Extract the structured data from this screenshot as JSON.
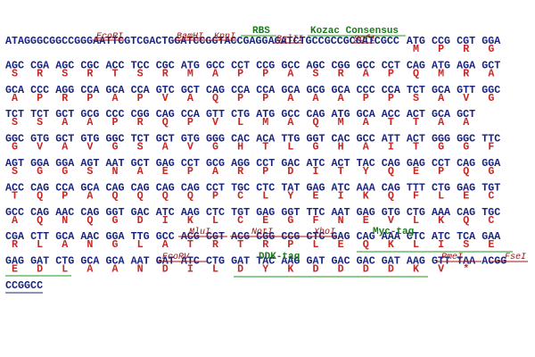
{
  "rows": [
    {
      "prefix": "ATAGGGCGGCCGGGAATTCGTCGACTGGATCCGGTACCGAGGAGATCTGCCGCCGCGATCGCC",
      "codons": [
        "ATG",
        "CCG",
        "CGT",
        "GGA"
      ],
      "aa": [
        "M",
        "P",
        "R",
        "G"
      ]
    },
    {
      "codons": [
        "AGC",
        "CGA",
        "AGC",
        "CGC",
        "ACC",
        "TCC",
        "CGC",
        "ATG",
        "GCC",
        "CCT",
        "CCG",
        "GCC",
        "AGC",
        "CGG",
        "GCC",
        "CCT",
        "CAG",
        "ATG",
        "AGA",
        "GCT"
      ],
      "aa": [
        "S",
        "R",
        "S",
        "R",
        "T",
        "S",
        "R",
        "M",
        "A",
        "P",
        "P",
        "A",
        "S",
        "R",
        "A",
        "P",
        "Q",
        "M",
        "R",
        "A"
      ]
    },
    {
      "codons": [
        "GCA",
        "CCC",
        "AGG",
        "CCA",
        "GCA",
        "CCA",
        "GTC",
        "GCT",
        "CAG",
        "CCA",
        "CCA",
        "GCA",
        "GCG",
        "GCA",
        "CCC",
        "CCA",
        "TCT",
        "GCA",
        "GTT",
        "GGC"
      ],
      "aa": [
        "A",
        "P",
        "R",
        "P",
        "A",
        "P",
        "V",
        "A",
        "Q",
        "P",
        "P",
        "A",
        "A",
        "A",
        "P",
        "P",
        "S",
        "A",
        "V",
        "G"
      ]
    },
    {
      "codons": [
        "TCT",
        "TCT",
        "GCT",
        "GCG",
        "CCC",
        "CGG",
        "CAG",
        "CCA",
        "GTT",
        "CTG",
        "ATG",
        "GCC",
        "CAG",
        "ATG",
        "GCA",
        "ACC",
        "ACT",
        "GCA",
        "GCT"
      ],
      "aa": [
        "S",
        "S",
        "A",
        "A",
        "P",
        "R",
        "Q",
        "P",
        "V",
        "L",
        "M",
        "A",
        "Q",
        "M",
        "A",
        "T",
        "T",
        "A",
        "A"
      ]
    },
    {
      "codons": [
        "GGC",
        "GTG",
        "GCT",
        "GTG",
        "GGC",
        "TCT",
        "GCT",
        "GTG",
        "GGG",
        "CAC",
        "ACA",
        "TTG",
        "GGT",
        "CAC",
        "GCC",
        "ATT",
        "ACT",
        "GGG",
        "GGC",
        "TTC"
      ],
      "aa": [
        "G",
        "V",
        "A",
        "V",
        "G",
        "S",
        "A",
        "V",
        "G",
        "H",
        "T",
        "L",
        "G",
        "H",
        "A",
        "I",
        "T",
        "G",
        "G",
        "F"
      ]
    },
    {
      "codons": [
        "AGT",
        "GGA",
        "GGA",
        "AGT",
        "AAT",
        "GCT",
        "GAG",
        "CCT",
        "GCG",
        "AGG",
        "CCT",
        "GAC",
        "ATC",
        "ACT",
        "TAC",
        "CAG",
        "GAG",
        "CCT",
        "CAG",
        "GGA"
      ],
      "aa": [
        "S",
        "G",
        "G",
        "S",
        "N",
        "A",
        "E",
        "P",
        "A",
        "R",
        "P",
        "D",
        "I",
        "T",
        "Y",
        "Q",
        "E",
        "P",
        "Q",
        "G"
      ]
    },
    {
      "codons": [
        "ACC",
        "CAG",
        "CCA",
        "GCA",
        "CAG",
        "CAG",
        "CAG",
        "CAG",
        "CCT",
        "TGC",
        "CTC",
        "TAT",
        "GAG",
        "ATC",
        "AAA",
        "CAG",
        "TTT",
        "CTG",
        "GAG",
        "TGT"
      ],
      "aa": [
        "T",
        "Q",
        "P",
        "A",
        "Q",
        "Q",
        "Q",
        "Q",
        "P",
        "C",
        "L",
        "Y",
        "E",
        "I",
        "K",
        "Q",
        "F",
        "L",
        "E",
        "C"
      ]
    },
    {
      "codons": [
        "GCC",
        "CAG",
        "AAC",
        "CAG",
        "GGT",
        "GAC",
        "ATC",
        "AAG",
        "CTC",
        "TGT",
        "GAG",
        "GGT",
        "TTC",
        "AAT",
        "GAG",
        "GTG",
        "CTG",
        "AAA",
        "CAG",
        "TGC"
      ],
      "aa": [
        "A",
        "Q",
        "N",
        "Q",
        "G",
        "D",
        "I",
        "K",
        "L",
        "C",
        "E",
        "G",
        "F",
        "N",
        "E",
        "V",
        "L",
        "K",
        "Q",
        "C"
      ]
    },
    {
      "codons": [
        "CGA",
        "CTT",
        "GCA",
        "AAC",
        "GGA",
        "TTG",
        "GCC",
        "ACG",
        "CGT",
        "ACG",
        "CGG",
        "CCG",
        "CTC",
        "GAG",
        "CAG",
        "AAA",
        "CTC",
        "ATC",
        "TCA",
        "GAA"
      ],
      "aa": [
        "R",
        "L",
        "A",
        "N",
        "G",
        "L",
        "A",
        "T",
        "R",
        "T",
        "R",
        "P",
        "L",
        "E",
        "Q",
        "K",
        "L",
        "I",
        "S",
        "E"
      ]
    },
    {
      "codons": [
        "GAG",
        "GAT",
        "CTG",
        "GCA",
        "GCA",
        "AAT",
        "GAT",
        "ATC",
        "CTG",
        "GAT",
        "TAC",
        "AAG",
        "GAT",
        "GAC",
        "GAC",
        "GAT",
        "AAG",
        "GTT",
        "TAA",
        "ACGG"
      ],
      "aa": [
        "E",
        "D",
        "L",
        "A",
        "A",
        "N",
        "D",
        "I",
        "L",
        "D",
        "Y",
        "K",
        "D",
        "D",
        "D",
        "D",
        "K",
        "V",
        "*"
      ]
    },
    {
      "codons": [
        "CCGGCC"
      ],
      "aa": []
    }
  ],
  "annotations": [
    {
      "label": "EcoRI"
    },
    {
      "label": "BamHI"
    },
    {
      "label": "KpnI"
    },
    {
      "label": "RBS"
    },
    {
      "label": "BglII"
    },
    {
      "label": "Kozac Consensus"
    },
    {
      "label": "SgfI"
    },
    {
      "label": "MluI"
    },
    {
      "label": "NotI"
    },
    {
      "label": "XhoI"
    },
    {
      "label": "Myc-tag"
    },
    {
      "label": "EcoRV"
    },
    {
      "label": "DDK-tag"
    },
    {
      "label": "PmeI"
    },
    {
      "label": "FseI"
    }
  ]
}
